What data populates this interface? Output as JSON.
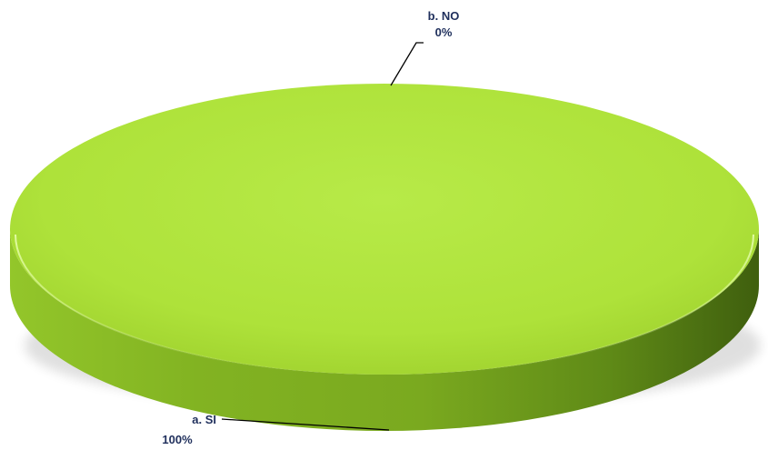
{
  "chart_data": {
    "type": "pie",
    "categories": [
      "a. SI",
      "b. NO"
    ],
    "values": [
      100,
      0
    ],
    "data_labels": [
      {
        "category": "a. SI",
        "value": "100%"
      },
      {
        "category": "b. NO",
        "value": "0%"
      }
    ],
    "colors": {
      "slice_top": "#b2e83f",
      "slice_side": "#6f9a1c",
      "label_text": "#1f2f5c",
      "leader_line": "#000000"
    }
  }
}
